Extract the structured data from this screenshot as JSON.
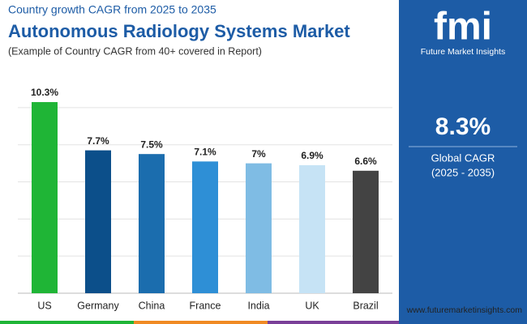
{
  "chart_data": {
    "type": "bar",
    "kicker": "Country growth CAGR from 2025 to 2035",
    "title": "Autonomous Radiology Systems Market",
    "subtitle": "(Example of Country CAGR from 40+ covered in Report)",
    "categories": [
      "US",
      "Germany",
      "China",
      "France",
      "India",
      "UK",
      "Brazil"
    ],
    "values": [
      10.3,
      7.7,
      7.5,
      7.1,
      7,
      6.9,
      6.6
    ],
    "value_labels": [
      "10.3%",
      "7.7%",
      "7.5%",
      "7.1%",
      "7%",
      "6.9%",
      "6.6%"
    ],
    "colors": [
      "#1fb536",
      "#0c4f8a",
      "#1b6dae",
      "#2e8fd6",
      "#7fbce4",
      "#c6e3f5",
      "#434343"
    ],
    "ylim": [
      0,
      11
    ],
    "yticks": [
      0,
      2,
      4,
      6,
      8,
      10
    ],
    "grid": true
  },
  "panel": {
    "brand": "fmi",
    "brand_name": "Future Market Insights",
    "headline": "8.3%",
    "caption": "Global CAGR",
    "period": "(2025 - 2035)",
    "website": "www.futuremarketinsights.com"
  }
}
